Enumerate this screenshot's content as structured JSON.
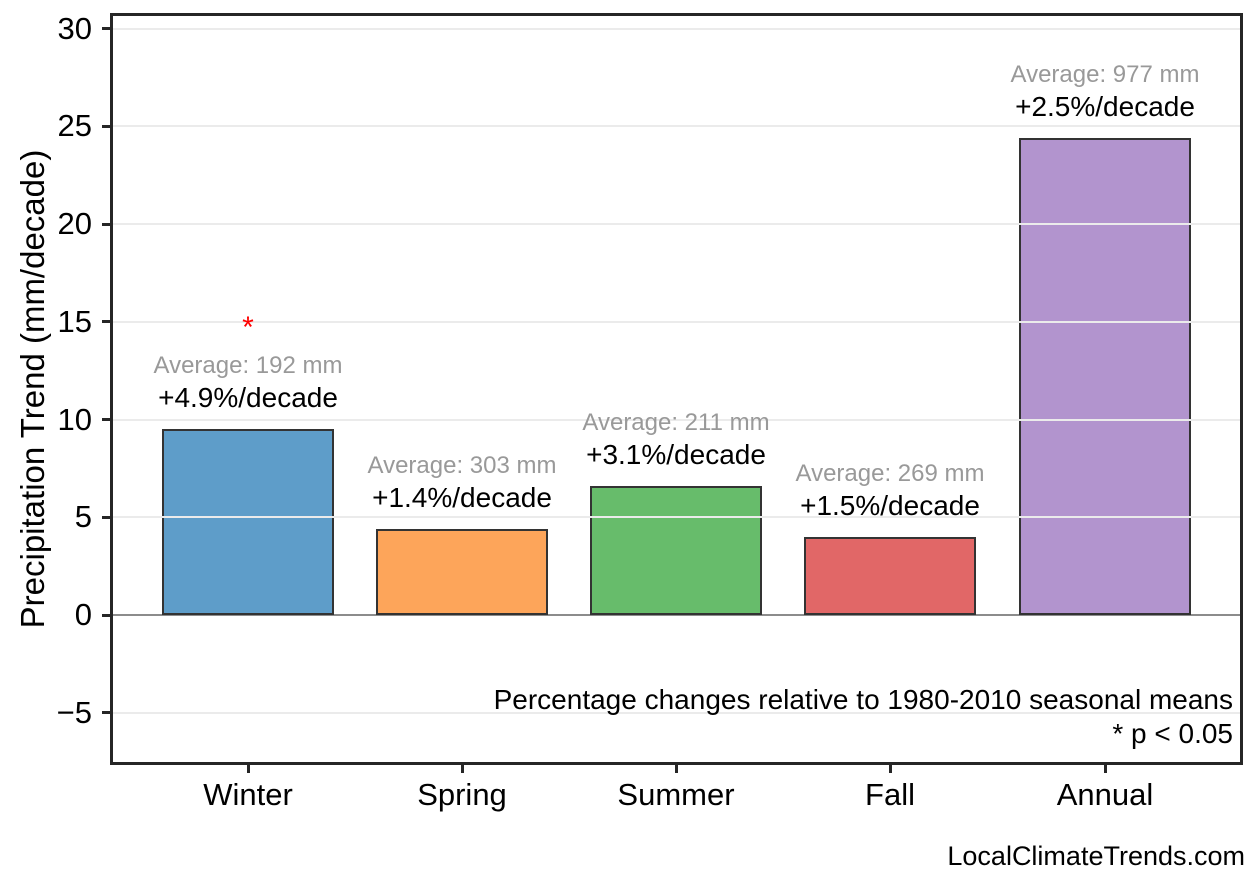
{
  "watermark": "LocalClimateTrends.com",
  "chart_data": {
    "type": "bar",
    "title": "",
    "xlabel": "",
    "ylabel": "Precipitation Trend (mm/decade)",
    "categories": [
      "Winter",
      "Spring",
      "Summer",
      "Fall",
      "Annual"
    ],
    "values": [
      9.5,
      4.4,
      6.6,
      4.0,
      24.4
    ],
    "units": "mm/decade",
    "bar_colors": [
      "#5E9DC9",
      "#FDA55A",
      "#67BC6B",
      "#E16767",
      "#B294CE"
    ],
    "bar_edge_color": "#333333",
    "averages_mm": [
      192,
      303,
      211,
      269,
      977
    ],
    "average_labels": [
      "Average: 192 mm",
      "Average: 303 mm",
      "Average: 211 mm",
      "Average: 269 mm",
      "Average: 977 mm"
    ],
    "percent_labels": [
      "+4.9%/decade",
      "+1.4%/decade",
      "+3.1%/decade",
      "+1.5%/decade",
      "+2.5%/decade"
    ],
    "significant": [
      true,
      false,
      false,
      false,
      false
    ],
    "significance_marker": "*",
    "significance_color": "#FF0000",
    "average_label_color": "#999999",
    "yticks": [
      30,
      25,
      20,
      15,
      10,
      5,
      0,
      -5
    ],
    "ylim": [
      -7.5,
      30.8
    ],
    "grid": true,
    "grid_color": "#EBEBEB",
    "zero_line": true,
    "legend": "none",
    "notes": [
      "Percentage changes relative to 1980-2010 seasonal means",
      "* p < 0.05"
    ]
  }
}
